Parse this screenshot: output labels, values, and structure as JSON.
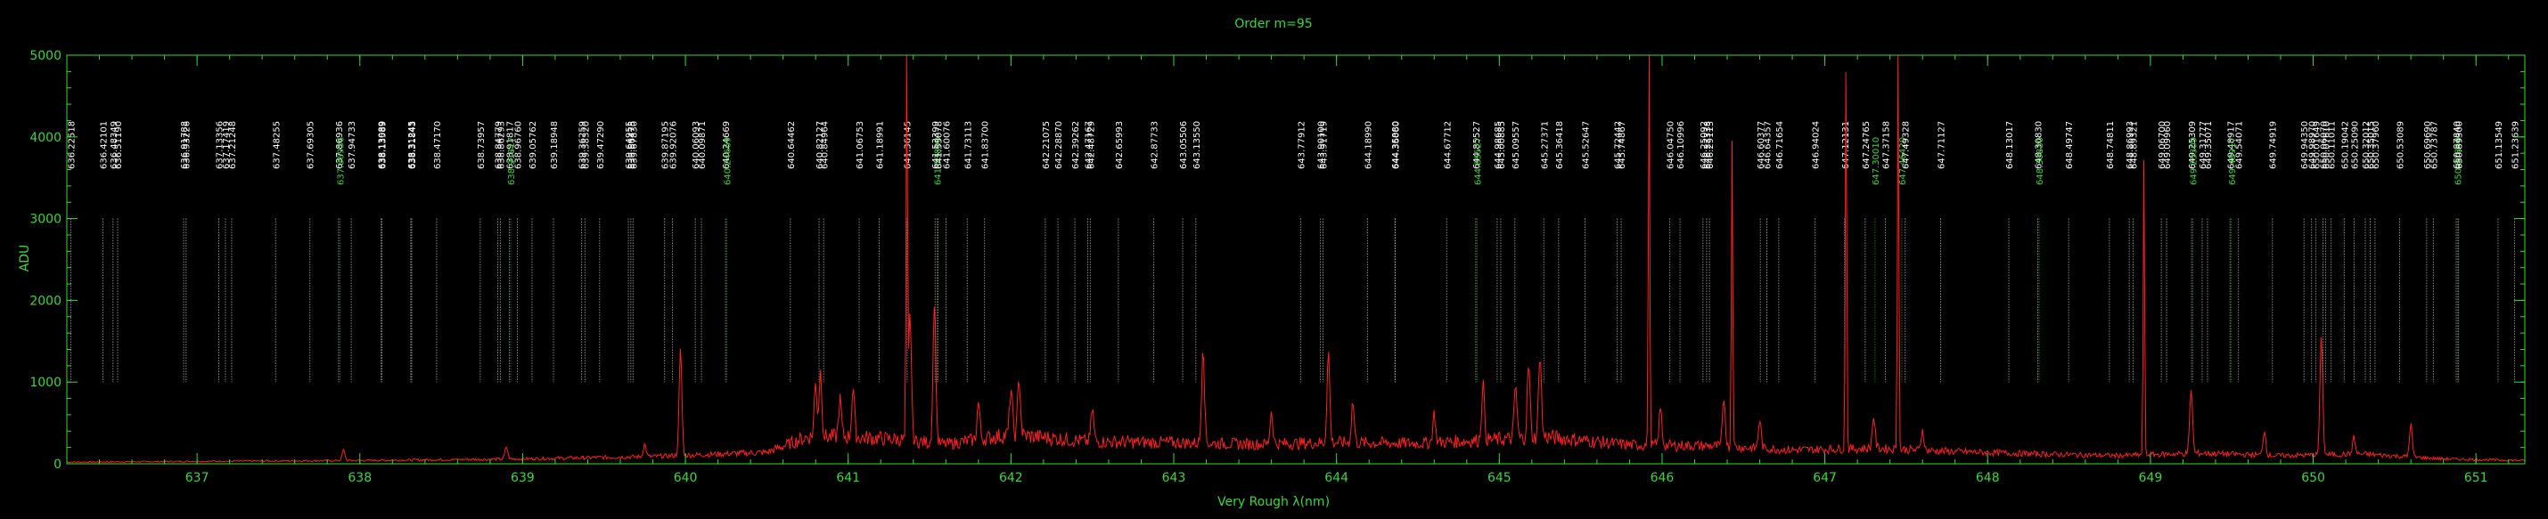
{
  "chart_data": {
    "type": "line",
    "title": "Order m=95",
    "xlabel": "Very Rough λ(nm)",
    "ylabel": "ADU",
    "xlim": [
      636.2,
      651.3
    ],
    "ylim": [
      0,
      5000
    ],
    "x_ticks": [
      "637",
      "638",
      "639",
      "640",
      "641",
      "642",
      "643",
      "644",
      "645",
      "646",
      "647",
      "648",
      "649",
      "650",
      "651"
    ],
    "y_ticks": [
      "0",
      "1000",
      "2000",
      "3000",
      "4000",
      "5000"
    ],
    "colors": {
      "axes": "#39d839",
      "spectrum": "#ff2020",
      "reference_white": "#ffffff",
      "reference_green": "#39d839"
    },
    "spectrum_baseline": [
      [
        636.2,
        20
      ],
      [
        637.0,
        30
      ],
      [
        638.0,
        40
      ],
      [
        639.0,
        60
      ],
      [
        639.8,
        90
      ],
      [
        640.5,
        140
      ],
      [
        640.75,
        330
      ],
      [
        641.0,
        330
      ],
      [
        641.3,
        300
      ],
      [
        641.6,
        240
      ],
      [
        642.0,
        360
      ],
      [
        642.5,
        270
      ],
      [
        643.0,
        260
      ],
      [
        643.5,
        240
      ],
      [
        644.0,
        260
      ],
      [
        644.5,
        250
      ],
      [
        645.0,
        300
      ],
      [
        645.3,
        330
      ],
      [
        645.8,
        230
      ],
      [
        646.3,
        220
      ],
      [
        646.8,
        170
      ],
      [
        647.3,
        190
      ],
      [
        647.8,
        150
      ],
      [
        648.3,
        120
      ],
      [
        648.8,
        100
      ],
      [
        649.3,
        130
      ],
      [
        649.8,
        100
      ],
      [
        650.3,
        120
      ],
      [
        650.8,
        60
      ],
      [
        651.3,
        40
      ]
    ],
    "spectrum_peaks": [
      [
        637.9,
        130
      ],
      [
        638.9,
        150
      ],
      [
        639.75,
        150
      ],
      [
        639.97,
        1300
      ],
      [
        640.8,
        650
      ],
      [
        640.83,
        800
      ],
      [
        640.95,
        450
      ],
      [
        641.03,
        600
      ],
      [
        641.36,
        4850
      ],
      [
        641.38,
        1550
      ],
      [
        641.53,
        1750
      ],
      [
        641.8,
        450
      ],
      [
        642.0,
        550
      ],
      [
        642.05,
        700
      ],
      [
        642.5,
        400
      ],
      [
        643.18,
        1200
      ],
      [
        643.6,
        400
      ],
      [
        643.95,
        1100
      ],
      [
        644.1,
        500
      ],
      [
        644.6,
        350
      ],
      [
        644.9,
        700
      ],
      [
        645.1,
        650
      ],
      [
        645.18,
        900
      ],
      [
        645.25,
        1050
      ],
      [
        645.92,
        5000
      ],
      [
        645.99,
        450
      ],
      [
        646.38,
        600
      ],
      [
        646.43,
        3800
      ],
      [
        646.6,
        350
      ],
      [
        647.13,
        4900
      ],
      [
        647.3,
        400
      ],
      [
        647.45,
        4950
      ],
      [
        647.6,
        250
      ],
      [
        648.96,
        3650
      ],
      [
        649.25,
        800
      ],
      [
        649.7,
        300
      ],
      [
        650.05,
        1450
      ],
      [
        650.25,
        200
      ],
      [
        650.6,
        400
      ]
    ],
    "reference_lines": [
      {
        "wl": "636.14337",
        "color": "white"
      },
      {
        "wl": "636.22518",
        "color": "white"
      },
      {
        "wl": "636.42101",
        "color": "white"
      },
      {
        "wl": "636.48349",
        "color": "white"
      },
      {
        "wl": "636.51190",
        "color": "white"
      },
      {
        "wl": "636.91788",
        "color": "white"
      },
      {
        "wl": "636.93226",
        "color": "white"
      },
      {
        "wl": "637.13356",
        "color": "white"
      },
      {
        "wl": "637.17419",
        "color": "white"
      },
      {
        "wl": "637.21248",
        "color": "white"
      },
      {
        "wl": "637.48255",
        "color": "white"
      },
      {
        "wl": "637.69305",
        "color": "white"
      },
      {
        "wl": "637.86936",
        "color": "white"
      },
      {
        "wl": "637.86936",
        "color": "green"
      },
      {
        "wl": "637.94733",
        "color": "white"
      },
      {
        "wl": "638.13089",
        "color": "white"
      },
      {
        "wl": "638.13589",
        "color": "white"
      },
      {
        "wl": "638.31245",
        "color": "white"
      },
      {
        "wl": "638.31843",
        "color": "white"
      },
      {
        "wl": "638.47170",
        "color": "white"
      },
      {
        "wl": "638.73957",
        "color": "white"
      },
      {
        "wl": "638.84779",
        "color": "white"
      },
      {
        "wl": "638.86293",
        "color": "white"
      },
      {
        "wl": "638.91817",
        "color": "white"
      },
      {
        "wl": "638.91817",
        "color": "green"
      },
      {
        "wl": "638.96760",
        "color": "white"
      },
      {
        "wl": "639.05762",
        "color": "white"
      },
      {
        "wl": "639.18948",
        "color": "white"
      },
      {
        "wl": "639.36259",
        "color": "white"
      },
      {
        "wl": "639.38320",
        "color": "white"
      },
      {
        "wl": "639.47290",
        "color": "white"
      },
      {
        "wl": "639.64955",
        "color": "white"
      },
      {
        "wl": "639.66475",
        "color": "white"
      },
      {
        "wl": "639.67830",
        "color": "white"
      },
      {
        "wl": "639.87195",
        "color": "white"
      },
      {
        "wl": "639.92076",
        "color": "white"
      },
      {
        "wl": "640.06093",
        "color": "white"
      },
      {
        "wl": "640.09871",
        "color": "white"
      },
      {
        "wl": "640.24669",
        "color": "white"
      },
      {
        "wl": "640.24669",
        "color": "green"
      },
      {
        "wl": "640.64462",
        "color": "white"
      },
      {
        "wl": "640.82127",
        "color": "white"
      },
      {
        "wl": "640.84964",
        "color": "white"
      },
      {
        "wl": "641.06753",
        "color": "white"
      },
      {
        "wl": "641.18991",
        "color": "white"
      },
      {
        "wl": "641.36145",
        "color": "white"
      },
      {
        "wl": "641.53399",
        "color": "white"
      },
      {
        "wl": "641.53800",
        "color": "green"
      },
      {
        "wl": "641.55078",
        "color": "white"
      },
      {
        "wl": "641.60076",
        "color": "white"
      },
      {
        "wl": "641.73113",
        "color": "white"
      },
      {
        "wl": "641.83700",
        "color": "white"
      },
      {
        "wl": "642.21075",
        "color": "white"
      },
      {
        "wl": "642.28870",
        "color": "white"
      },
      {
        "wl": "642.39262",
        "color": "white"
      },
      {
        "wl": "642.47167",
        "color": "white"
      },
      {
        "wl": "642.48729",
        "color": "white"
      },
      {
        "wl": "642.65993",
        "color": "white"
      },
      {
        "wl": "642.87733",
        "color": "white"
      },
      {
        "wl": "643.05506",
        "color": "white"
      },
      {
        "wl": "643.13550",
        "color": "white"
      },
      {
        "wl": "643.77912",
        "color": "white"
      },
      {
        "wl": "643.90100",
        "color": "white"
      },
      {
        "wl": "643.91719",
        "color": "white"
      },
      {
        "wl": "644.18990",
        "color": "white"
      },
      {
        "wl": "644.35880",
        "color": "white"
      },
      {
        "wl": "644.36060",
        "color": "white"
      },
      {
        "wl": "644.67712",
        "color": "white"
      },
      {
        "wl": "644.85527",
        "color": "white"
      },
      {
        "wl": "644.85527",
        "color": "green"
      },
      {
        "wl": "644.98685",
        "color": "white"
      },
      {
        "wl": "645.00885",
        "color": "white"
      },
      {
        "wl": "645.09557",
        "color": "white"
      },
      {
        "wl": "645.27371",
        "color": "white"
      },
      {
        "wl": "645.36418",
        "color": "white"
      },
      {
        "wl": "645.52647",
        "color": "white"
      },
      {
        "wl": "645.72442",
        "color": "white"
      },
      {
        "wl": "645.74867",
        "color": "white"
      },
      {
        "wl": "646.04750",
        "color": "white"
      },
      {
        "wl": "646.10996",
        "color": "white"
      },
      {
        "wl": "646.25092",
        "color": "white"
      },
      {
        "wl": "646.27338",
        "color": "white"
      },
      {
        "wl": "646.29113",
        "color": "white"
      },
      {
        "wl": "646.60377",
        "color": "white"
      },
      {
        "wl": "646.64357",
        "color": "white"
      },
      {
        "wl": "646.71654",
        "color": "white"
      },
      {
        "wl": "646.94024",
        "color": "white"
      },
      {
        "wl": "647.12131",
        "color": "white"
      },
      {
        "wl": "647.24765",
        "color": "white"
      },
      {
        "wl": "647.30010",
        "color": "green"
      },
      {
        "wl": "647.37158",
        "color": "white"
      },
      {
        "wl": "647.46420",
        "color": "green"
      },
      {
        "wl": "647.49328",
        "color": "white"
      },
      {
        "wl": "647.71127",
        "color": "white"
      },
      {
        "wl": "648.13017",
        "color": "white"
      },
      {
        "wl": "648.30830",
        "color": "white"
      },
      {
        "wl": "648.30830",
        "color": "green"
      },
      {
        "wl": "648.49747",
        "color": "white"
      },
      {
        "wl": "648.74811",
        "color": "white"
      },
      {
        "wl": "648.86993",
        "color": "white"
      },
      {
        "wl": "648.89321",
        "color": "white"
      },
      {
        "wl": "649.06700",
        "color": "white"
      },
      {
        "wl": "649.09960",
        "color": "white"
      },
      {
        "wl": "649.25309",
        "color": "white"
      },
      {
        "wl": "649.25309",
        "color": "green"
      },
      {
        "wl": "649.31777",
        "color": "white"
      },
      {
        "wl": "649.35071",
        "color": "white"
      },
      {
        "wl": "649.48917",
        "color": "white"
      },
      {
        "wl": "649.48917",
        "color": "green"
      },
      {
        "wl": "649.54071",
        "color": "white"
      },
      {
        "wl": "649.74919",
        "color": "white"
      },
      {
        "wl": "649.94350",
        "color": "white"
      },
      {
        "wl": "649.98970",
        "color": "white"
      },
      {
        "wl": "650.01649",
        "color": "white"
      },
      {
        "wl": "650.06070",
        "color": "white"
      },
      {
        "wl": "650.07610",
        "color": "white"
      },
      {
        "wl": "650.11011",
        "color": "white"
      },
      {
        "wl": "650.19042",
        "color": "white"
      },
      {
        "wl": "650.25090",
        "color": "white"
      },
      {
        "wl": "650.32012",
        "color": "white"
      },
      {
        "wl": "650.35015",
        "color": "white"
      },
      {
        "wl": "650.37960",
        "color": "white"
      },
      {
        "wl": "650.53089",
        "color": "white"
      },
      {
        "wl": "650.69690",
        "color": "white"
      },
      {
        "wl": "650.73787",
        "color": "white"
      },
      {
        "wl": "650.87840",
        "color": "white"
      },
      {
        "wl": "650.87840",
        "color": "green"
      },
      {
        "wl": "650.89300",
        "color": "white"
      },
      {
        "wl": "651.13549",
        "color": "white"
      },
      {
        "wl": "651.23639",
        "color": "white"
      }
    ]
  }
}
